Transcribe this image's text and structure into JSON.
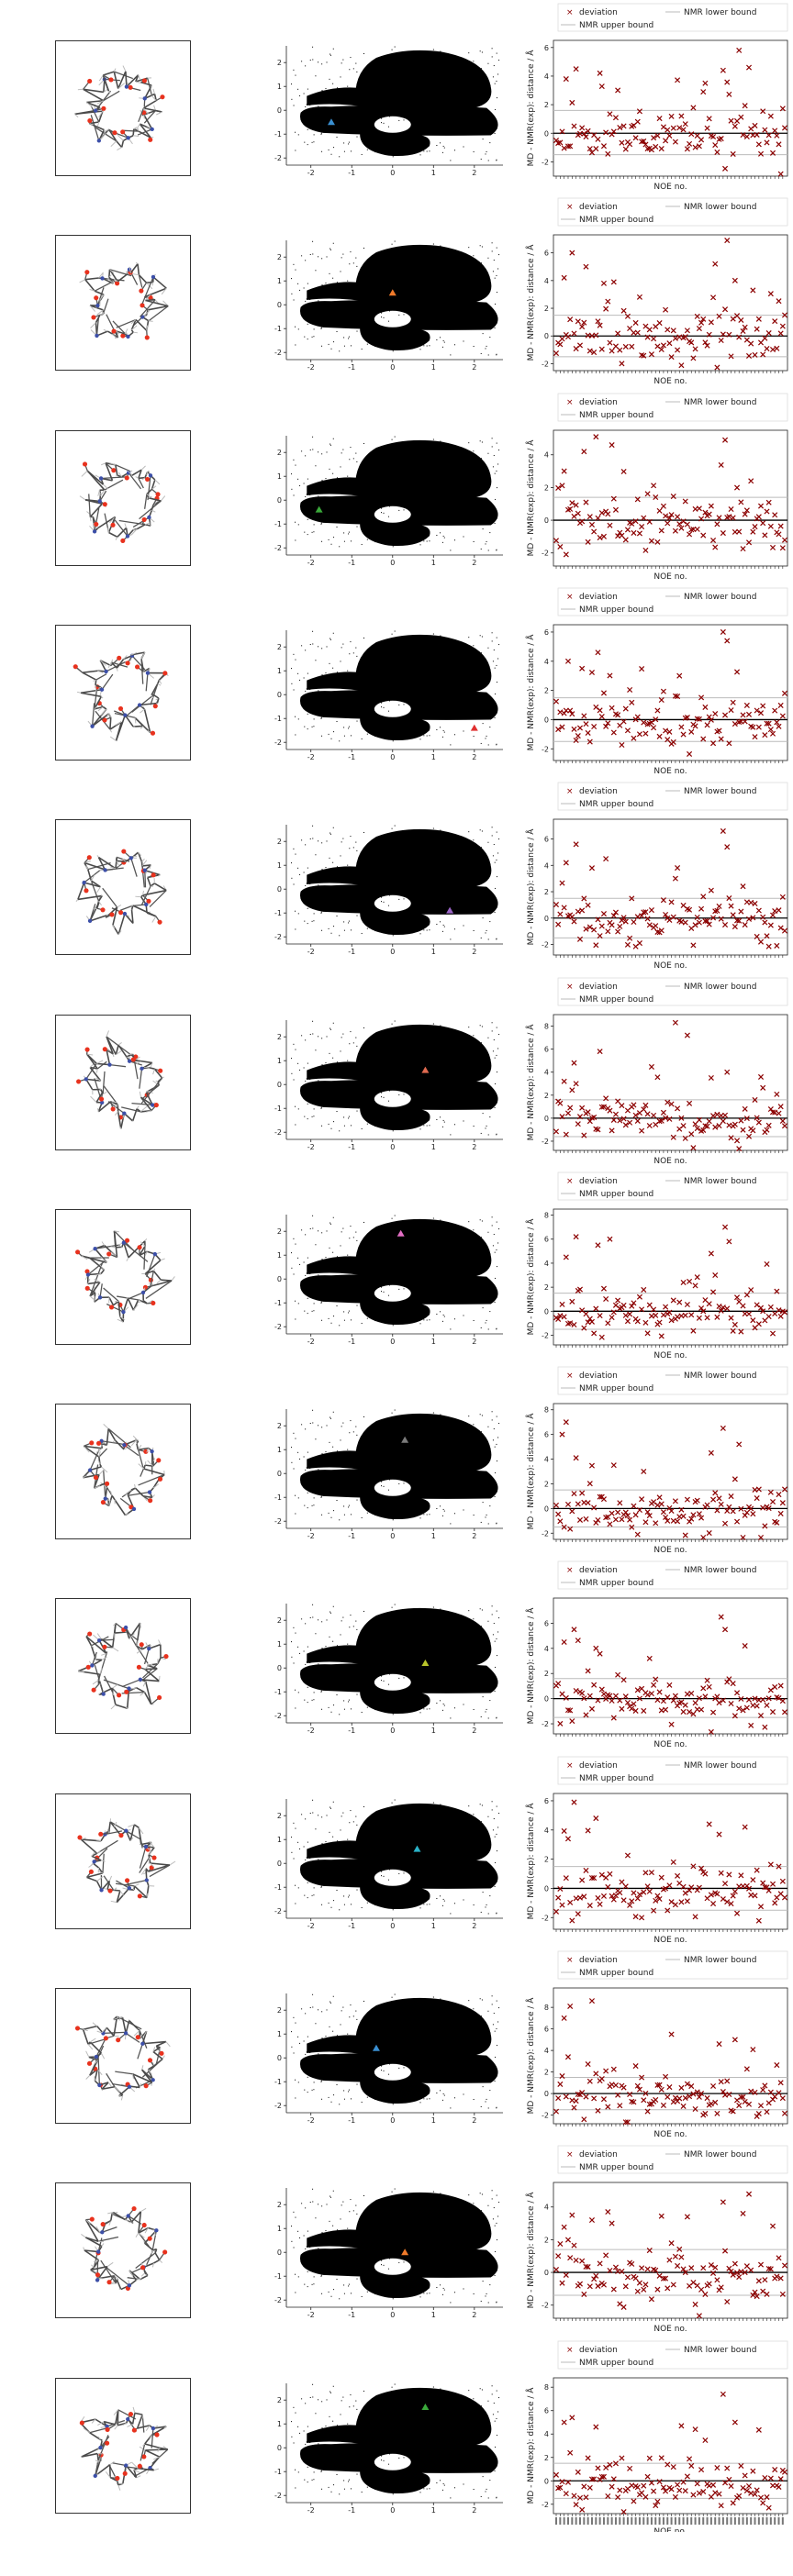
{
  "figure": {
    "legend": {
      "deviation": "deviation",
      "nmr_upper": "NMR upper bound",
      "nmr_lower": "NMR lower bound"
    },
    "ylabel": "MD - NMR(exp): distance / Å",
    "xlabel": "NOE no.",
    "colors": {
      "deviation": "#8b0000",
      "bound_line": "#bbbbbb",
      "zero_line": "#000000",
      "density": "#000000"
    }
  },
  "chart_data": [
    {
      "type": "scatter",
      "description_free": true,
      "projection": {
        "xlim": [
          -2.6,
          2.7
        ],
        "ylim": [
          -2.3,
          2.7
        ],
        "xticks": [
          -2,
          -1,
          0,
          1,
          2
        ],
        "yticks": [
          -2,
          -1,
          0,
          1,
          2
        ]
      },
      "markers": [
        {
          "row": 1,
          "x": -1.5,
          "y": -0.5,
          "color": "#3a8fd1"
        },
        {
          "row": 2,
          "x": 0.0,
          "y": 0.5,
          "color": "#f07a2a"
        },
        {
          "row": 3,
          "x": -1.8,
          "y": -0.4,
          "color": "#3aa83a"
        },
        {
          "row": 4,
          "x": 2.0,
          "y": -1.4,
          "color": "#e03030"
        },
        {
          "row": 5,
          "x": 1.4,
          "y": -0.9,
          "color": "#9a64c6"
        },
        {
          "row": 6,
          "x": 0.8,
          "y": 0.6,
          "color": "#e06a50"
        },
        {
          "row": 7,
          "x": 0.2,
          "y": 1.9,
          "color": "#e46fc5"
        },
        {
          "row": 8,
          "x": 0.3,
          "y": 1.4,
          "color": "#7a7a7a"
        },
        {
          "row": 9,
          "x": 0.8,
          "y": 0.2,
          "color": "#b9c42a"
        },
        {
          "row": 10,
          "x": 0.6,
          "y": 0.6,
          "color": "#2ab3c8"
        },
        {
          "row": 11,
          "x": -0.4,
          "y": 0.4,
          "color": "#3a8fd1"
        },
        {
          "row": 12,
          "x": 0.3,
          "y": 0.0,
          "color": "#f07a2a"
        },
        {
          "row": 13,
          "x": 0.8,
          "y": 1.7,
          "color": "#3aa83a"
        }
      ]
    },
    {
      "type": "scatter",
      "series_name": "deviation",
      "n_noe": 116,
      "panels": [
        {
          "ylim": [
            -3,
            6.5
          ],
          "yticks": [
            -2,
            0,
            2,
            4,
            6
          ],
          "upper": 1.6,
          "lower": -1.5,
          "seed": 11,
          "peaks": [
            [
              5,
              3.8
            ],
            [
              10,
              4.5
            ],
            [
              22,
              4.2
            ],
            [
              84,
              4.4
            ],
            [
              92,
              5.8
            ],
            [
              97,
              4.6
            ],
            [
              75,
              3.5
            ]
          ]
        },
        {
          "ylim": [
            -2.5,
            7.3
          ],
          "yticks": [
            -2,
            0,
            2,
            4,
            6
          ],
          "upper": 1.5,
          "lower": -1.5,
          "seed": 23,
          "peaks": [
            [
              4,
              4.2
            ],
            [
              8,
              6.0
            ],
            [
              15,
              5.0
            ],
            [
              24,
              3.8
            ],
            [
              80,
              5.2
            ],
            [
              86,
              6.9
            ],
            [
              90,
              4.0
            ]
          ]
        },
        {
          "ylim": [
            -2.8,
            5.5
          ],
          "yticks": [
            -2,
            0,
            2,
            4
          ],
          "upper": 1.4,
          "lower": -1.4,
          "seed": 37,
          "peaks": [
            [
              4,
              3.0
            ],
            [
              14,
              4.2
            ],
            [
              20,
              5.1
            ],
            [
              28,
              4.6
            ],
            [
              85,
              4.9
            ],
            [
              98,
              2.4
            ]
          ]
        },
        {
          "ylim": [
            -2.8,
            6.5
          ],
          "yticks": [
            -2,
            0,
            2,
            4,
            6
          ],
          "upper": 1.5,
          "lower": -1.5,
          "seed": 41,
          "peaks": [
            [
              6,
              4.0
            ],
            [
              13,
              3.5
            ],
            [
              21,
              4.6
            ],
            [
              84,
              6.0
            ],
            [
              86,
              5.4
            ],
            [
              62,
              3.0
            ]
          ]
        },
        {
          "ylim": [
            -2.8,
            7.5
          ],
          "yticks": [
            -2,
            0,
            2,
            4,
            6
          ],
          "upper": 1.5,
          "lower": -1.5,
          "seed": 53,
          "peaks": [
            [
              5,
              4.2
            ],
            [
              10,
              5.6
            ],
            [
              18,
              3.8
            ],
            [
              25,
              4.5
            ],
            [
              84,
              6.6
            ],
            [
              86,
              5.4
            ],
            [
              60,
              3.0
            ]
          ]
        },
        {
          "ylim": [
            -2.8,
            9.0
          ],
          "yticks": [
            -2,
            0,
            2,
            4,
            6,
            8
          ],
          "upper": 1.6,
          "lower": -1.6,
          "seed": 67,
          "peaks": [
            [
              4,
              3.2
            ],
            [
              9,
              4.8
            ],
            [
              22,
              5.8
            ],
            [
              60,
              8.3
            ],
            [
              66,
              7.2
            ],
            [
              86,
              4.0
            ],
            [
              78,
              3.5
            ]
          ]
        },
        {
          "ylim": [
            -2.8,
            8.5
          ],
          "yticks": [
            -2,
            0,
            2,
            4,
            6,
            8
          ],
          "upper": 1.5,
          "lower": -1.5,
          "seed": 71,
          "peaks": [
            [
              5,
              4.5
            ],
            [
              10,
              6.2
            ],
            [
              21,
              5.5
            ],
            [
              27,
              6.0
            ],
            [
              85,
              7.0
            ],
            [
              87,
              5.8
            ],
            [
              78,
              4.8
            ]
          ]
        },
        {
          "ylim": [
            -2.5,
            8.5
          ],
          "yticks": [
            -2,
            0,
            2,
            4,
            6,
            8
          ],
          "upper": 1.5,
          "lower": -1.5,
          "seed": 83,
          "peaks": [
            [
              3,
              6.0
            ],
            [
              5,
              7.0
            ],
            [
              10,
              4.1
            ],
            [
              84,
              6.5
            ],
            [
              92,
              5.2
            ],
            [
              78,
              4.5
            ]
          ]
        },
        {
          "ylim": [
            -2.8,
            8.0
          ],
          "yticks": [
            -2,
            0,
            2,
            4,
            6
          ],
          "upper": 1.6,
          "lower": -1.5,
          "seed": 97,
          "peaks": [
            [
              4,
              4.5
            ],
            [
              9,
              5.5
            ],
            [
              20,
              4.0
            ],
            [
              83,
              6.5
            ],
            [
              85,
              5.5
            ],
            [
              95,
              4.2
            ]
          ]
        },
        {
          "ylim": [
            -2.8,
            6.5
          ],
          "yticks": [
            -2,
            0,
            2,
            4,
            6
          ],
          "upper": 1.5,
          "lower": -1.5,
          "seed": 101,
          "peaks": [
            [
              6,
              3.4
            ],
            [
              9,
              5.9
            ],
            [
              20,
              4.8
            ],
            [
              77,
              4.4
            ],
            [
              82,
              3.7
            ],
            [
              95,
              4.2
            ]
          ]
        },
        {
          "ylim": [
            -2.8,
            9.8
          ],
          "yticks": [
            -2,
            0,
            2,
            4,
            6,
            8
          ],
          "upper": 1.5,
          "lower": -1.5,
          "seed": 113,
          "peaks": [
            [
              4,
              7.0
            ],
            [
              7,
              8.1
            ],
            [
              18,
              8.6
            ],
            [
              58,
              5.5
            ],
            [
              82,
              4.6
            ],
            [
              90,
              5.0
            ]
          ]
        },
        {
          "ylim": [
            -2.8,
            5.5
          ],
          "yticks": [
            -2,
            0,
            2,
            4
          ],
          "upper": 1.4,
          "lower": -1.4,
          "seed": 127,
          "peaks": [
            [
              8,
              3.5
            ],
            [
              18,
              3.2
            ],
            [
              28,
              3.0
            ],
            [
              66,
              3.4
            ],
            [
              84,
              4.3
            ],
            [
              94,
              3.6
            ]
          ]
        },
        {
          "ylim": [
            -2.8,
            8.8
          ],
          "yticks": [
            -2,
            0,
            2,
            4,
            6,
            8
          ],
          "upper": 1.5,
          "lower": -1.5,
          "seed": 131,
          "peaks": [
            [
              4,
              5.0
            ],
            [
              8,
              5.4
            ],
            [
              20,
              4.6
            ],
            [
              84,
              7.4
            ],
            [
              90,
              5.0
            ],
            [
              70,
              4.4
            ]
          ]
        }
      ]
    }
  ]
}
